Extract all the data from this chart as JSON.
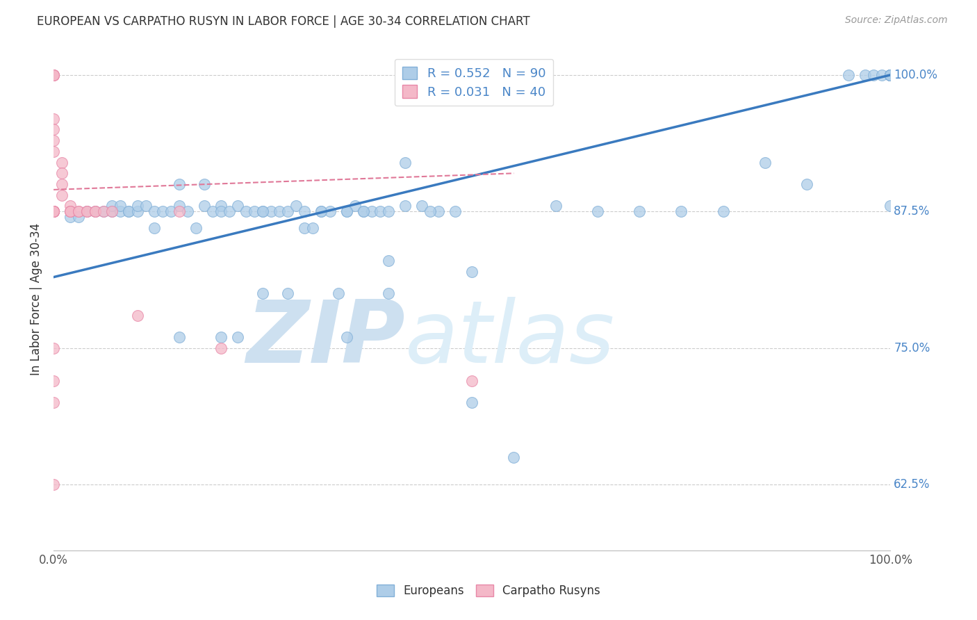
{
  "title": "EUROPEAN VS CARPATHO RUSYN IN LABOR FORCE | AGE 30-34 CORRELATION CHART",
  "source_text": "Source: ZipAtlas.com",
  "ylabel": "In Labor Force | Age 30-34",
  "y_tick_labels": [
    "62.5%",
    "75.0%",
    "87.5%",
    "100.0%"
  ],
  "y_tick_values": [
    0.625,
    0.75,
    0.875,
    1.0
  ],
  "xlim": [
    0.0,
    1.0
  ],
  "ylim": [
    0.565,
    1.025
  ],
  "legend_blue_label": "R = 0.552   N = 90",
  "legend_pink_label": "R = 0.031   N = 40",
  "dot_color_blue": "#aecde8",
  "dot_color_pink": "#f4b8c8",
  "dot_edge_blue": "#82b0d8",
  "dot_edge_pink": "#e888a8",
  "line_color_blue": "#3a7abf",
  "line_color_pink": "#e07898",
  "watermark_zip": "ZIP",
  "watermark_atlas": "atlas",
  "watermark_color": "#cde0f0",
  "eu_line_x0": 0.0,
  "eu_line_y0": 0.815,
  "eu_line_x1": 1.0,
  "eu_line_y1": 1.0,
  "ru_line_x0": 0.0,
  "ru_line_y0": 0.895,
  "ru_line_x1": 0.55,
  "ru_line_y1": 0.91,
  "europeans_x": [
    0.02,
    0.03,
    0.04,
    0.05,
    0.06,
    0.07,
    0.07,
    0.08,
    0.08,
    0.09,
    0.09,
    0.1,
    0.1,
    0.11,
    0.12,
    0.12,
    0.13,
    0.14,
    0.15,
    0.15,
    0.16,
    0.17,
    0.18,
    0.18,
    0.19,
    0.2,
    0.2,
    0.21,
    0.22,
    0.23,
    0.24,
    0.25,
    0.26,
    0.27,
    0.28,
    0.29,
    0.3,
    0.31,
    0.32,
    0.33,
    0.34,
    0.35,
    0.36,
    0.37,
    0.38,
    0.39,
    0.4,
    0.42,
    0.44,
    0.46,
    0.2,
    0.22,
    0.25,
    0.28,
    0.3,
    0.32,
    0.35,
    0.37,
    0.4,
    0.42,
    0.45,
    0.48,
    0.5,
    0.55,
    0.6,
    0.65,
    0.7,
    0.75,
    0.8,
    0.85,
    0.9,
    0.95,
    0.97,
    0.98,
    0.99,
    1.0,
    1.0,
    1.0,
    1.0,
    1.0,
    1.0,
    1.0,
    1.0,
    1.0,
    1.0,
    0.5,
    0.4,
    0.35,
    0.25,
    0.15
  ],
  "europeans_y": [
    0.87,
    0.87,
    0.875,
    0.875,
    0.875,
    0.875,
    0.88,
    0.875,
    0.88,
    0.875,
    0.875,
    0.875,
    0.88,
    0.88,
    0.86,
    0.875,
    0.875,
    0.875,
    0.88,
    0.9,
    0.875,
    0.86,
    0.88,
    0.9,
    0.875,
    0.88,
    0.875,
    0.875,
    0.88,
    0.875,
    0.875,
    0.875,
    0.875,
    0.875,
    0.875,
    0.88,
    0.86,
    0.86,
    0.875,
    0.875,
    0.8,
    0.875,
    0.88,
    0.875,
    0.875,
    0.875,
    0.83,
    0.92,
    0.88,
    0.875,
    0.76,
    0.76,
    0.875,
    0.8,
    0.875,
    0.875,
    0.875,
    0.875,
    0.875,
    0.88,
    0.875,
    0.875,
    0.7,
    0.65,
    0.88,
    0.875,
    0.875,
    0.875,
    0.875,
    0.92,
    0.9,
    1.0,
    1.0,
    1.0,
    1.0,
    1.0,
    1.0,
    1.0,
    1.0,
    1.0,
    1.0,
    1.0,
    1.0,
    1.0,
    0.88,
    0.82,
    0.8,
    0.76,
    0.8,
    0.76
  ],
  "rusyns_x": [
    0.0,
    0.0,
    0.0,
    0.0,
    0.0,
    0.0,
    0.0,
    0.0,
    0.01,
    0.01,
    0.01,
    0.01,
    0.02,
    0.02,
    0.02,
    0.02,
    0.03,
    0.03,
    0.04,
    0.04,
    0.05,
    0.05,
    0.06,
    0.07,
    0.0,
    0.0,
    0.0,
    0.0,
    0.0,
    0.0,
    0.0,
    0.0,
    0.1,
    0.15,
    0.2,
    0.0,
    0.5,
    0.0,
    0.0,
    0.0
  ],
  "rusyns_y": [
    1.0,
    1.0,
    1.0,
    1.0,
    0.96,
    0.95,
    0.94,
    0.93,
    0.92,
    0.91,
    0.9,
    0.89,
    0.88,
    0.875,
    0.875,
    0.875,
    0.875,
    0.875,
    0.875,
    0.875,
    0.875,
    0.875,
    0.875,
    0.875,
    0.875,
    0.875,
    0.875,
    0.875,
    0.875,
    0.875,
    0.875,
    0.875,
    0.78,
    0.875,
    0.75,
    0.75,
    0.72,
    0.72,
    0.7,
    0.625
  ]
}
